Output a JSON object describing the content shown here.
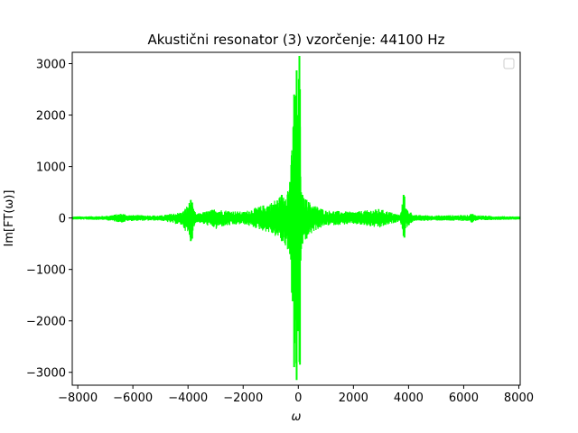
{
  "chart_data": {
    "type": "line",
    "title": "Akustični resonator (3) vzorčenje: 44100 Hz",
    "xlabel": "ω",
    "ylabel": "Im[FT(ω)]",
    "xlim": [
      -8200,
      8050
    ],
    "ylim": [
      -3250,
      3220
    ],
    "xticks": [
      -8000,
      -6000,
      -4000,
      -2000,
      0,
      2000,
      4000,
      6000,
      8000
    ],
    "xtick_labels": [
      "−8000",
      "−6000",
      "−4000",
      "−2000",
      "0",
      "2000",
      "4000",
      "6000",
      "8000"
    ],
    "yticks": [
      -3000,
      -2000,
      -1000,
      0,
      1000,
      2000,
      3000
    ],
    "ytick_labels": [
      "−3000",
      "−2000",
      "−1000",
      "0",
      "1000",
      "2000",
      "3000"
    ],
    "grid": false,
    "legend": {
      "placement": "top-right",
      "entries": []
    },
    "color": "#00ff00",
    "series": [
      {
        "x": [
          -8200,
          -7000,
          -6400,
          -6300,
          -6200,
          -5000,
          -4200,
          -3900,
          -3850,
          -3820,
          -3700,
          -3000,
          -2980,
          -2950,
          -2000,
          -1000,
          -600,
          -300,
          -150,
          -60,
          -40,
          -20,
          0,
          20,
          40,
          60,
          100,
          150,
          300,
          600,
          1000,
          2000,
          2950,
          2980,
          3000,
          3700,
          3820,
          3850,
          3900,
          4200,
          5000,
          6200,
          6300,
          6400,
          7000,
          8050
        ],
        "y_min": [
          -30,
          -40,
          -90,
          -80,
          -60,
          -50,
          -150,
          -450,
          -400,
          -250,
          -80,
          -200,
          -250,
          -180,
          -120,
          -300,
          -450,
          -700,
          -2900,
          -3150,
          -2200,
          -1500,
          -1300,
          -2200,
          -2800,
          -2850,
          -600,
          -500,
          -400,
          -250,
          -150,
          -120,
          -200,
          -220,
          -180,
          -60,
          -350,
          -380,
          -200,
          -60,
          -50,
          -60,
          -100,
          -60,
          -40,
          -30
        ],
        "y_max": [
          30,
          40,
          90,
          80,
          60,
          50,
          120,
          350,
          300,
          200,
          80,
          180,
          220,
          170,
          120,
          300,
          450,
          700,
          2400,
          2870,
          2000,
          1500,
          1400,
          2700,
          3150,
          2500,
          500,
          450,
          350,
          250,
          150,
          120,
          180,
          200,
          170,
          60,
          450,
          420,
          200,
          60,
          50,
          60,
          100,
          60,
          40,
          30
        ]
      }
    ]
  }
}
